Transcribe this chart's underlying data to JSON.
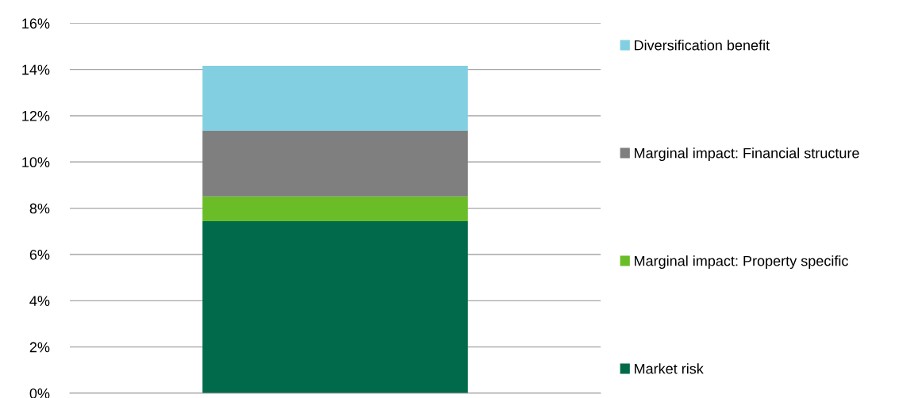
{
  "chart_data": {
    "type": "bar",
    "stacked": true,
    "categories": [
      null
    ],
    "series": [
      {
        "name": "Market risk",
        "color": "#006a4a",
        "values": [
          7.44
        ]
      },
      {
        "name": "Marginal impact: Property specific",
        "color": "#6abd27",
        "values": [
          1.07
        ]
      },
      {
        "name": "Marginal impact: Financial structure",
        "color": "#7f7f7f",
        "values": [
          2.84
        ]
      },
      {
        "name": "Diversification benefit",
        "color": "#82cfe2",
        "values": [
          2.81
        ]
      }
    ],
    "ylim": [
      0,
      16
    ],
    "yticks": [
      {
        "value": 0,
        "label": "0%"
      },
      {
        "value": 2,
        "label": "2%"
      },
      {
        "value": 4,
        "label": "4%"
      },
      {
        "value": 6,
        "label": "6%"
      },
      {
        "value": 8,
        "label": "8%"
      },
      {
        "value": 10,
        "label": "10%"
      },
      {
        "value": 12,
        "label": "12%"
      },
      {
        "value": 14,
        "label": "14%"
      },
      {
        "value": 16,
        "label": "16%"
      }
    ],
    "grid": "y",
    "legend": "right"
  }
}
